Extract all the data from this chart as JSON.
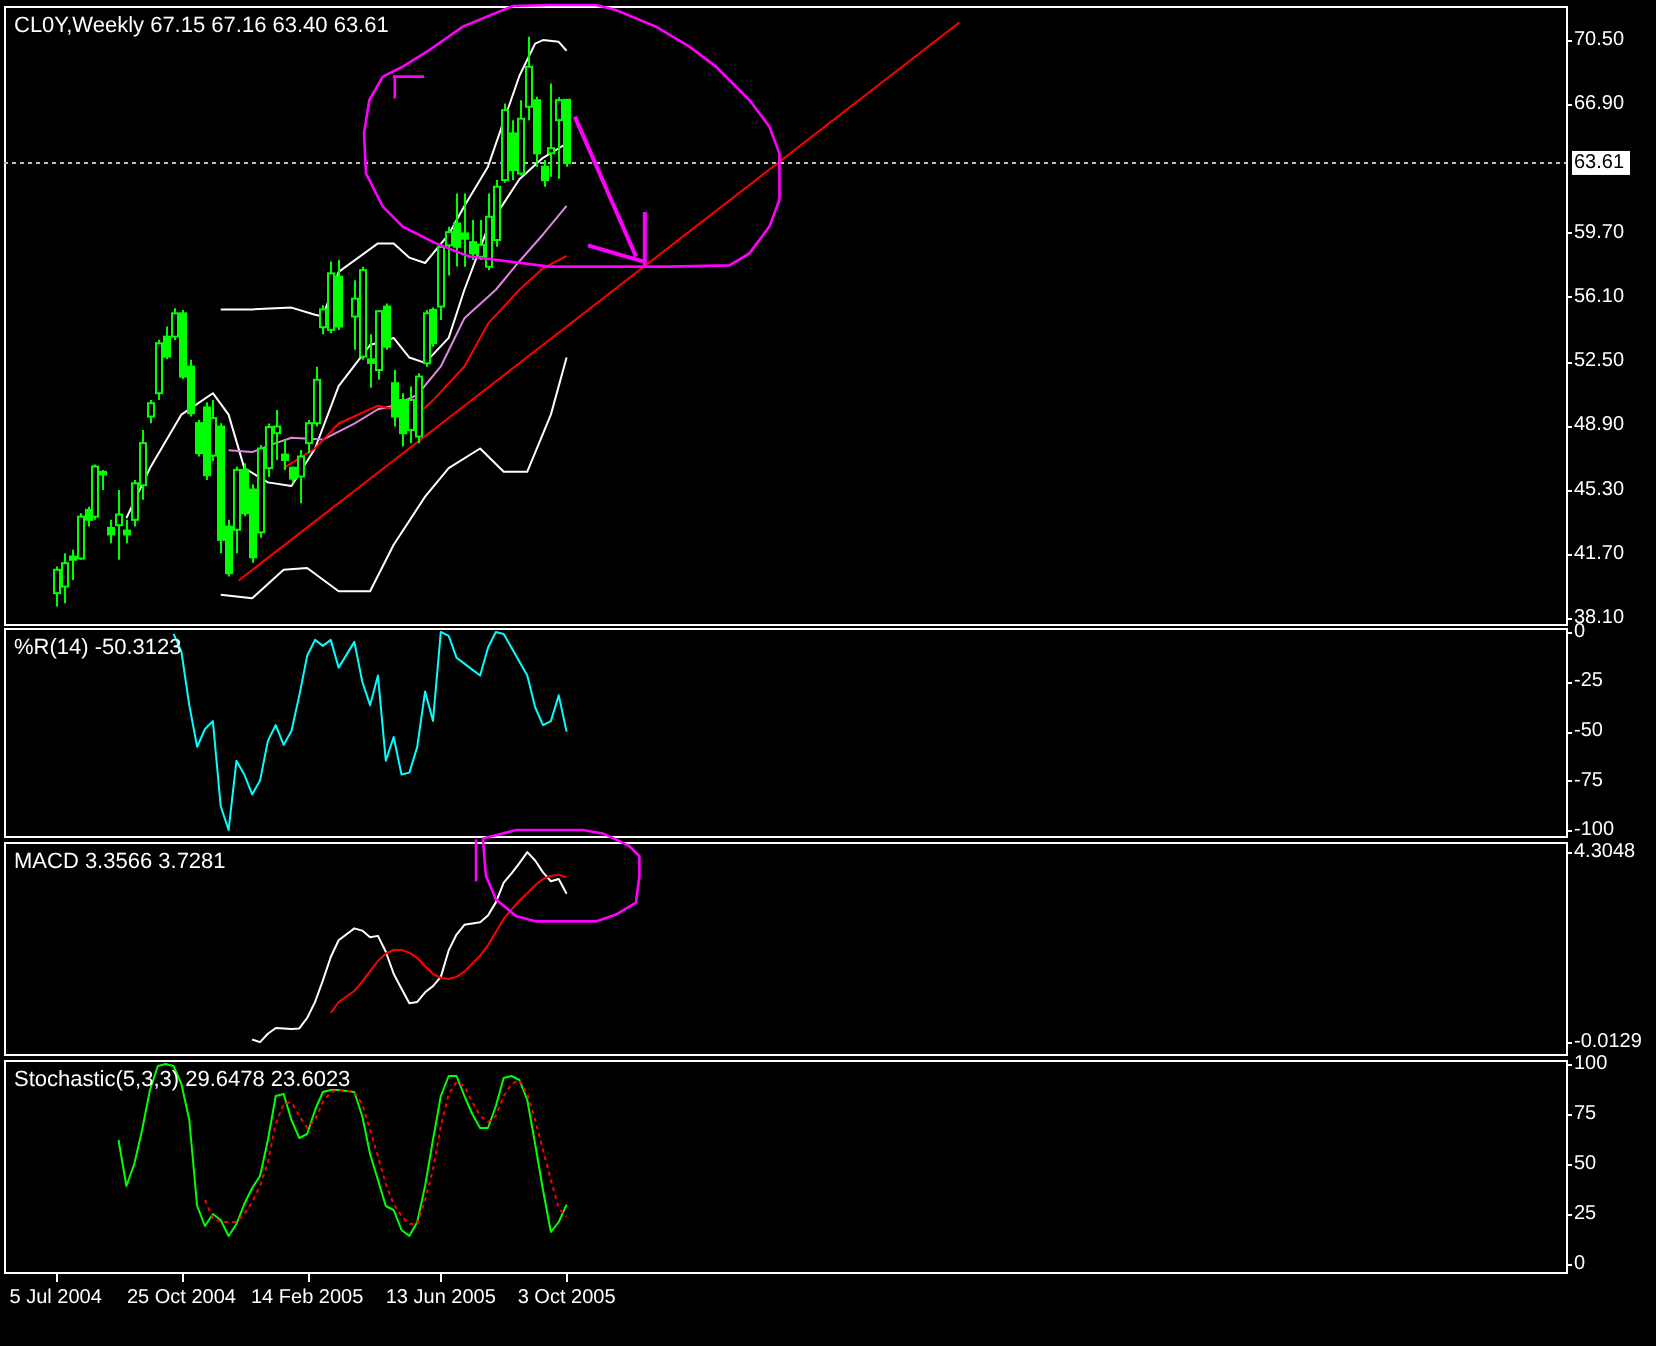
{
  "chart_data": [
    {
      "type": "candlestick",
      "title": "CL0Y,Weekly 67.15 67.16 63.40 63.61",
      "color": "#00ff00",
      "tick_labels": "y",
      "xlim": [
        "2004-05-20",
        "2008-03-11"
      ],
      "ylim": [
        37.76,
        72.41
      ],
      "yticks": [
        {
          "value": 70.5,
          "label": "70.50"
        },
        {
          "value": 66.9,
          "label": "66.90"
        },
        {
          "value": 59.7,
          "label": "59.70"
        },
        {
          "value": 56.1,
          "label": "56.10"
        },
        {
          "value": 52.5,
          "label": "52.50"
        },
        {
          "value": 48.9,
          "label": "48.90"
        },
        {
          "value": 45.3,
          "label": "45.30"
        },
        {
          "value": 41.7,
          "label": "41.70"
        },
        {
          "value": 38.1,
          "label": "38.10"
        }
      ],
      "ref_lines": [
        {
          "axis": "y",
          "value": 63.61,
          "label": "63.61",
          "color": "#c0c0c0",
          "line_style": "dotted"
        }
      ],
      "x": [
        "2004-07-05",
        "2004-07-12",
        "2004-07-19",
        "2004-07-26",
        "2004-08-02",
        "2004-08-09",
        "2004-08-16",
        "2004-08-23",
        "2004-08-30",
        "2004-09-06",
        "2004-09-13",
        "2004-09-20",
        "2004-09-27",
        "2004-10-04",
        "2004-10-11",
        "2004-10-18",
        "2004-10-25",
        "2004-11-01",
        "2004-11-08",
        "2004-11-15",
        "2004-11-22",
        "2004-11-29",
        "2004-12-06",
        "2004-12-13",
        "2004-12-20",
        "2004-12-27",
        "2005-01-03",
        "2005-01-10",
        "2005-01-17",
        "2005-01-24",
        "2005-01-31",
        "2005-02-07",
        "2005-02-14",
        "2005-02-21",
        "2005-02-28",
        "2005-03-07",
        "2005-03-14",
        "2005-03-28",
        "2005-04-04",
        "2005-04-11",
        "2005-04-18",
        "2005-04-25",
        "2005-05-02",
        "2005-05-09",
        "2005-05-16",
        "2005-05-23",
        "2005-05-30",
        "2005-06-06",
        "2005-06-13",
        "2005-06-20",
        "2005-06-27",
        "2005-07-04",
        "2005-07-11",
        "2005-07-18",
        "2005-07-25",
        "2005-08-01",
        "2005-08-08",
        "2005-08-15",
        "2005-08-22",
        "2005-08-29",
        "2005-09-05",
        "2005-09-12",
        "2005-09-19",
        "2005-09-26",
        "2005-10-03"
      ],
      "ohlc": [
        [
          39.49,
          40.98,
          38.74,
          40.8
        ],
        [
          39.86,
          41.73,
          38.93,
          41.17
        ],
        [
          41.54,
          41.92,
          40.23,
          41.36
        ],
        [
          41.43,
          43.97,
          41.36,
          43.78
        ],
        [
          44.16,
          44.34,
          43.22,
          43.6
        ],
        [
          43.78,
          46.7,
          43.6,
          46.59
        ],
        [
          46.29,
          46.4,
          45.28,
          46.14
        ],
        [
          43.15,
          43.6,
          42.29,
          42.78
        ],
        [
          43.3,
          45.28,
          41.36,
          43.9
        ],
        [
          43.0,
          43.6,
          42.29,
          42.78
        ],
        [
          43.6,
          45.84,
          43.22,
          45.65
        ],
        [
          45.54,
          48.64,
          44.72,
          47.9
        ],
        [
          49.39,
          50.32,
          49.02,
          50.14
        ],
        [
          50.7,
          53.7,
          50.32,
          53.5
        ],
        [
          53.87,
          54.44,
          52.6,
          52.75
        ],
        [
          53.87,
          55.47,
          53.69,
          55.18
        ],
        [
          55.18,
          55.36,
          51.5,
          51.63
        ],
        [
          52.19,
          52.57,
          49.4,
          49.58
        ],
        [
          49.02,
          49.2,
          47.15,
          47.34
        ],
        [
          49.9,
          50.2,
          45.84,
          46.1
        ],
        [
          47.2,
          50.32,
          46.9,
          49.3
        ],
        [
          48.83,
          49.02,
          41.73,
          42.48
        ],
        [
          43.22,
          43.6,
          40.42,
          40.61
        ],
        [
          43.04,
          46.59,
          41.73,
          46.4
        ],
        [
          46.4,
          46.77,
          43.8,
          43.97
        ],
        [
          45.3,
          45.6,
          41.2,
          41.5
        ],
        [
          42.9,
          47.8,
          42.6,
          47.6
        ],
        [
          46.5,
          49.0,
          46.0,
          48.8
        ],
        [
          48.46,
          49.76,
          46.96,
          48.83
        ],
        [
          47.26,
          48.08,
          46.4,
          46.96
        ],
        [
          46.52,
          46.59,
          45.65,
          45.91
        ],
        [
          46.03,
          47.52,
          44.53,
          47.15
        ],
        [
          47.9,
          49.2,
          47.34,
          49.02
        ],
        [
          49.02,
          52.19,
          48.83,
          51.45
        ],
        [
          54.4,
          55.63,
          54.0,
          55.4
        ],
        [
          54.25,
          58.09,
          54.06,
          57.42
        ],
        [
          57.23,
          58.17,
          54.25,
          54.44
        ],
        [
          55.0,
          57.04,
          53.13,
          56.0
        ],
        [
          52.75,
          57.79,
          52.57,
          57.6
        ],
        [
          52.6,
          54.0,
          51.0,
          52.4
        ],
        [
          52.0,
          55.36,
          51.45,
          55.3
        ],
        [
          55.56,
          55.73,
          53.13,
          53.31
        ],
        [
          51.26,
          52.0,
          48.83,
          49.39
        ],
        [
          50.32,
          50.7,
          47.71,
          48.46
        ],
        [
          48.64,
          51.07,
          47.9,
          50.32
        ],
        [
          48.27,
          51.82,
          47.9,
          51.63
        ],
        [
          52.38,
          55.36,
          52.19,
          55.18
        ],
        [
          55.37,
          55.5,
          53.31,
          53.5
        ],
        [
          55.56,
          59.1,
          54.81,
          58.9
        ],
        [
          58.99,
          60.03,
          57.3,
          59.73
        ],
        [
          60.22,
          61.9,
          57.8,
          58.91
        ],
        [
          59.66,
          61.9,
          57.79,
          59.36
        ],
        [
          59.17,
          60.41,
          58.17,
          58.54
        ],
        [
          58.35,
          60.41,
          58.17,
          59.02
        ],
        [
          57.79,
          61.9,
          57.6,
          60.59
        ],
        [
          59.29,
          62.65,
          58.91,
          62.28
        ],
        [
          62.65,
          66.95,
          62.5,
          66.57
        ],
        [
          65.27,
          66.01,
          62.65,
          63.21
        ],
        [
          63.02,
          67.13,
          62.9,
          66.09
        ],
        [
          66.76,
          70.68,
          66.01,
          69.0
        ],
        [
          67.13,
          67.32,
          63.4,
          64.15
        ],
        [
          63.4,
          63.77,
          62.28,
          62.65
        ],
        [
          64.15,
          68.07,
          62.84,
          64.44
        ],
        [
          66.01,
          67.3,
          62.73,
          67.13
        ],
        [
          67.15,
          67.16,
          63.4,
          63.61
        ]
      ],
      "series": [
        {
          "type": "line",
          "color": "#ffffff",
          "x": [
            "2004-09-06",
            "2004-09-27",
            "2004-10-25",
            "2004-11-22",
            "2004-12-06",
            "2004-12-20",
            "2005-01-10",
            "2005-01-31",
            "2005-02-21",
            "2005-03-14",
            "2005-04-11",
            "2005-05-02",
            "2005-05-16",
            "2005-05-30",
            "2005-06-20",
            "2005-07-04",
            "2005-07-25",
            "2005-08-22",
            "2005-09-12",
            "2005-10-03"
          ],
          "values": [
            43.7,
            46.5,
            49.5,
            50.7,
            49.5,
            46.5,
            45.7,
            45.5,
            47.6,
            51.1,
            53.4,
            53.8,
            52.7,
            52.4,
            53.8,
            56.5,
            60.0,
            62.7,
            63.9,
            64.7
          ]
        },
        {
          "type": "line",
          "color": "#ffffff",
          "x": [
            "2004-11-29",
            "2004-12-27",
            "2005-01-31",
            "2005-02-21",
            "2005-02-28",
            "2005-03-14",
            "2005-04-18",
            "2005-05-02",
            "2005-05-16",
            "2005-05-30",
            "2005-06-20",
            "2005-07-04",
            "2005-07-25",
            "2005-08-22",
            "2005-09-05",
            "2005-09-12",
            "2005-09-26",
            "2005-10-03"
          ],
          "values": [
            55.4,
            55.4,
            55.5,
            55.1,
            55.0,
            57.5,
            59.1,
            59.1,
            58.3,
            58.0,
            59.6,
            61.2,
            63.4,
            68.5,
            70.3,
            70.5,
            70.4,
            69.9
          ]
        },
        {
          "type": "line",
          "color": "#ffffff",
          "x": [
            "2004-11-29",
            "2004-12-13",
            "2004-12-27",
            "2005-01-24",
            "2005-02-14",
            "2005-03-14",
            "2005-04-11",
            "2005-05-02",
            "2005-05-30",
            "2005-06-20",
            "2005-07-18",
            "2005-08-08",
            "2005-08-29",
            "2005-09-19",
            "2005-10-03"
          ],
          "values": [
            39.4,
            39.3,
            39.2,
            40.8,
            40.9,
            39.6,
            39.6,
            42.2,
            44.9,
            46.5,
            47.6,
            46.3,
            46.3,
            49.5,
            52.7
          ]
        },
        {
          "type": "line",
          "color": "#dd88dd",
          "x": [
            "2004-12-06",
            "2004-12-27",
            "2005-01-17",
            "2005-01-31",
            "2005-02-28",
            "2005-03-28",
            "2005-04-18",
            "2005-05-02",
            "2005-05-23",
            "2005-06-13",
            "2005-07-04",
            "2005-08-01",
            "2005-08-22",
            "2005-09-12",
            "2005-10-03"
          ],
          "values": [
            47.5,
            47.4,
            47.9,
            48.2,
            48.1,
            49.0,
            49.8,
            50.0,
            50.6,
            52.2,
            54.9,
            56.5,
            58.1,
            59.6,
            61.2
          ]
        },
        {
          "type": "line",
          "color": "#ff0000",
          "x": [
            "2005-01-24",
            "2005-02-21",
            "2005-03-14",
            "2005-04-18",
            "2005-05-02",
            "2005-05-23",
            "2005-06-06",
            "2005-07-04",
            "2005-07-25",
            "2005-08-22",
            "2005-09-12",
            "2005-10-03"
          ],
          "values": [
            46.5,
            47.6,
            49.0,
            50.0,
            49.8,
            49.5,
            50.3,
            52.2,
            54.6,
            56.5,
            57.7,
            58.4
          ]
        },
        {
          "type": "line",
          "color": "#ff0000",
          "x": [
            "2004-12-15",
            "2006-09-18"
          ],
          "values": [
            40.2,
            71.5
          ]
        }
      ]
    },
    {
      "type": "line",
      "title": "%R(14) -50.3123",
      "tick_labels": "y",
      "xlim": [
        "2004-05-20",
        "2008-03-11"
      ],
      "ylim": [
        -103,
        2
      ],
      "yticks": [
        0,
        -25,
        -50,
        -75,
        -100
      ],
      "series": [
        {
          "color": "#00ffff",
          "x": [
            "2004-10-18",
            "2004-10-25",
            "2004-11-01",
            "2004-11-08",
            "2004-11-15",
            "2004-11-22",
            "2004-11-29",
            "2004-12-06",
            "2004-12-13",
            "2004-12-20",
            "2004-12-27",
            "2005-01-03",
            "2005-01-10",
            "2005-01-17",
            "2005-01-24",
            "2005-01-31",
            "2005-02-07",
            "2005-02-14",
            "2005-02-21",
            "2005-02-28",
            "2005-03-07",
            "2005-03-14",
            "2005-03-28",
            "2005-04-04",
            "2005-04-11",
            "2005-04-18",
            "2005-04-25",
            "2005-05-02",
            "2005-05-09",
            "2005-05-16",
            "2005-05-23",
            "2005-05-30",
            "2005-06-06",
            "2005-06-13",
            "2005-06-20",
            "2005-06-27",
            "2005-07-04",
            "2005-07-11",
            "2005-07-18",
            "2005-07-25",
            "2005-08-01",
            "2005-08-08",
            "2005-08-15",
            "2005-08-22",
            "2005-08-29",
            "2005-09-05",
            "2005-09-12",
            "2005-09-19",
            "2005-09-26",
            "2005-10-03"
          ],
          "values": [
            -1,
            -10,
            -37,
            -58,
            -49,
            -45,
            -88,
            -100,
            -65,
            -72,
            -82,
            -75,
            -55,
            -47,
            -57,
            -50,
            -32,
            -12,
            -4,
            -7,
            -4,
            -18,
            -5,
            -25,
            -37,
            -22,
            -65,
            -53,
            -72,
            -71,
            -58,
            -30,
            -45,
            0,
            -2,
            -13,
            -16,
            -19,
            -22,
            -8,
            0,
            -1,
            -8,
            -15,
            -22,
            -38,
            -47,
            -45,
            -32,
            -50.3123
          ]
        }
      ]
    },
    {
      "type": "line",
      "title": "MACD 3.3566 3.7281",
      "tick_labels": "y",
      "xlim": [
        "2004-05-20",
        "2008-03-11"
      ],
      "ylim": [
        -0.28,
        4.53
      ],
      "yticks": [
        4.3048,
        -0.0129
      ],
      "series": [
        {
          "color": "#ffffff",
          "x": [
            "2004-12-27",
            "2005-01-03",
            "2005-01-10",
            "2005-01-17",
            "2005-01-24",
            "2005-01-31",
            "2005-02-07",
            "2005-02-14",
            "2005-02-21",
            "2005-02-28",
            "2005-03-07",
            "2005-03-14",
            "2005-03-28",
            "2005-04-04",
            "2005-04-11",
            "2005-04-18",
            "2005-04-25",
            "2005-05-02",
            "2005-05-09",
            "2005-05-16",
            "2005-05-23",
            "2005-05-30",
            "2005-06-06",
            "2005-06-13",
            "2005-06-20",
            "2005-06-27",
            "2005-07-04",
            "2005-07-11",
            "2005-07-18",
            "2005-07-25",
            "2005-08-01",
            "2005-08-08",
            "2005-08-15",
            "2005-08-22",
            "2005-08-29",
            "2005-09-05",
            "2005-09-12",
            "2005-09-19",
            "2005-09-26",
            "2005-10-03"
          ],
          "values": [
            0.05,
            -0.01,
            0.18,
            0.31,
            0.3,
            0.29,
            0.3,
            0.54,
            0.9,
            1.39,
            1.92,
            2.3,
            2.57,
            2.52,
            2.37,
            2.4,
            2.04,
            1.54,
            1.2,
            0.87,
            0.9,
            1.12,
            1.26,
            1.47,
            2.07,
            2.43,
            2.65,
            2.68,
            2.71,
            2.86,
            3.16,
            3.61,
            3.82,
            4.05,
            4.3,
            4.11,
            3.84,
            3.64,
            3.69,
            3.3566
          ]
        },
        {
          "color": "#ff0000",
          "x": [
            "2005-03-07",
            "2005-03-14",
            "2005-03-28",
            "2005-04-04",
            "2005-04-11",
            "2005-04-18",
            "2005-04-25",
            "2005-05-02",
            "2005-05-09",
            "2005-05-16",
            "2005-05-23",
            "2005-05-30",
            "2005-06-06",
            "2005-06-13",
            "2005-06-20",
            "2005-06-27",
            "2005-07-04",
            "2005-07-11",
            "2005-07-18",
            "2005-07-25",
            "2005-08-01",
            "2005-08-08",
            "2005-08-15",
            "2005-08-22",
            "2005-08-29",
            "2005-09-05",
            "2005-09-12",
            "2005-09-19",
            "2005-09-26",
            "2005-10-03"
          ],
          "values": [
            0.65,
            0.9,
            1.15,
            1.36,
            1.6,
            1.83,
            2.0,
            2.08,
            2.08,
            2.02,
            1.9,
            1.71,
            1.54,
            1.45,
            1.42,
            1.47,
            1.59,
            1.77,
            1.95,
            2.19,
            2.49,
            2.79,
            3.0,
            3.2,
            3.37,
            3.55,
            3.69,
            3.76,
            3.79,
            3.7281
          ]
        }
      ]
    },
    {
      "type": "line",
      "title": "Stochastic(5,3,3) 29.6478 23.6023",
      "xlim": [
        "2004-05-20",
        "2008-03-11"
      ],
      "ylim": [
        -4,
        102
      ],
      "yticks": [
        100,
        75,
        50,
        25,
        0
      ],
      "xticks": [
        {
          "value": "2004-07-05",
          "label": "5 Jul 2004"
        },
        {
          "value": "2004-10-25",
          "label": "25 Oct 2004"
        },
        {
          "value": "2005-02-14",
          "label": "14 Feb 2005"
        },
        {
          "value": "2005-06-13",
          "label": "13 Jun 2005"
        },
        {
          "value": "2005-10-03",
          "label": "3 Oct 2005"
        }
      ],
      "series": [
        {
          "color": "#00ff00",
          "x": [
            "2004-08-30",
            "2004-09-06",
            "2004-09-13",
            "2004-09-20",
            "2004-09-27",
            "2004-10-04",
            "2004-10-11",
            "2004-10-18",
            "2004-10-25",
            "2004-11-01",
            "2004-11-08",
            "2004-11-15",
            "2004-11-22",
            "2004-11-29",
            "2004-12-06",
            "2004-12-13",
            "2004-12-20",
            "2004-12-27",
            "2005-01-03",
            "2005-01-10",
            "2005-01-17",
            "2005-01-24",
            "2005-01-31",
            "2005-02-07",
            "2005-02-14",
            "2005-02-21",
            "2005-02-28",
            "2005-03-07",
            "2005-03-14",
            "2005-03-28",
            "2005-04-04",
            "2005-04-11",
            "2005-04-18",
            "2005-04-25",
            "2005-05-02",
            "2005-05-09",
            "2005-05-16",
            "2005-05-23",
            "2005-05-30",
            "2005-06-06",
            "2005-06-13",
            "2005-06-20",
            "2005-06-27",
            "2005-07-04",
            "2005-07-11",
            "2005-07-18",
            "2005-07-25",
            "2005-08-01",
            "2005-08-08",
            "2005-08-15",
            "2005-08-22",
            "2005-08-29",
            "2005-09-05",
            "2005-09-12",
            "2005-09-19",
            "2005-09-26",
            "2005-10-03"
          ],
          "values": [
            62,
            39,
            50,
            67,
            87,
            99,
            100,
            99,
            90,
            72,
            29,
            19,
            25,
            22,
            14,
            20,
            30,
            38,
            44,
            62,
            84,
            85,
            72,
            63,
            65,
            77,
            86,
            87,
            87,
            86,
            74,
            55,
            42,
            29,
            27,
            17,
            14,
            21,
            39,
            62,
            84,
            94,
            94,
            84,
            75,
            68,
            68,
            79,
            93,
            94,
            92,
            82,
            60,
            37,
            16,
            21,
            29.6478
          ]
        },
        {
          "color": "#ff0000",
          "line_style": "dotted",
          "x": [
            "2004-11-15",
            "2004-11-22",
            "2004-11-29",
            "2004-12-06",
            "2004-12-13",
            "2004-12-20",
            "2004-12-27",
            "2005-01-03",
            "2005-01-10",
            "2005-01-17",
            "2005-01-24",
            "2005-01-31",
            "2005-02-07",
            "2005-02-14",
            "2005-02-21",
            "2005-02-28",
            "2005-03-07",
            "2005-03-14",
            "2005-03-28",
            "2005-04-04",
            "2005-04-11",
            "2005-04-18",
            "2005-04-25",
            "2005-05-02",
            "2005-05-09",
            "2005-05-16",
            "2005-05-23",
            "2005-05-30",
            "2005-06-06",
            "2005-06-13",
            "2005-06-20",
            "2005-06-27",
            "2005-07-04",
            "2005-07-11",
            "2005-07-18",
            "2005-07-25",
            "2005-08-01",
            "2005-08-08",
            "2005-08-15",
            "2005-08-22",
            "2005-08-29",
            "2005-09-05",
            "2005-09-12",
            "2005-09-19",
            "2005-09-26",
            "2005-10-03"
          ],
          "values": [
            32,
            23,
            21,
            21,
            21,
            25,
            31,
            39,
            51,
            70,
            80,
            81,
            74,
            68,
            72,
            81,
            86,
            87,
            86,
            80,
            67,
            54,
            40,
            30,
            24,
            20,
            20,
            32,
            47,
            69,
            85,
            91,
            89,
            81,
            74,
            71,
            74,
            84,
            90,
            92,
            85,
            72,
            57,
            42,
            28,
            23.6023
          ]
        }
      ]
    }
  ]
}
